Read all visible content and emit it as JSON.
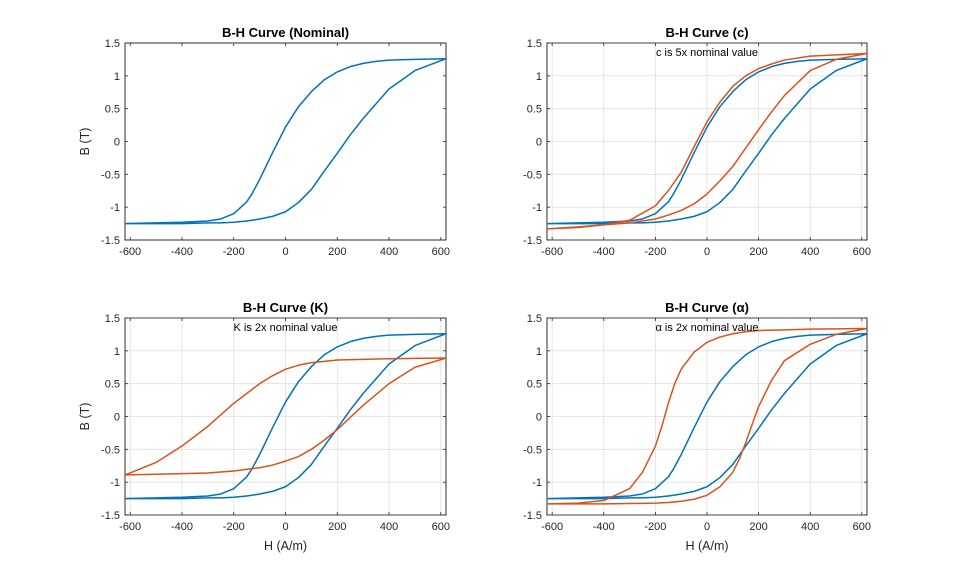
{
  "colors": {
    "nominal": "#0072BD",
    "variant": "#D95319"
  },
  "chart_data": [
    {
      "type": "line",
      "title": "B-H Curve (Nominal)",
      "annotation": "",
      "xlabel": "",
      "ylabel": "B (T)",
      "xlim": [
        -620,
        620
      ],
      "ylim": [
        -1.5,
        1.5
      ],
      "xticks": [
        -600,
        -400,
        -200,
        0,
        200,
        400,
        600
      ],
      "yticks": [
        -1.5,
        -1,
        -0.5,
        0,
        0.5,
        1,
        1.5
      ],
      "xtick_labels": [
        "-600",
        "-400",
        "-200",
        "0",
        "200",
        "400",
        "600"
      ],
      "ytick_labels": [
        "-1.5",
        "-1",
        "-0.5",
        "0",
        "0.5",
        "1",
        "1.5"
      ],
      "grid": false,
      "series": [
        {
          "color": "#0072BD",
          "x": [
            -620,
            -500,
            -400,
            -300,
            -250,
            -200,
            -150,
            -130,
            -100,
            -50,
            0,
            50,
            100,
            150,
            200,
            250,
            300,
            350,
            400,
            500,
            620,
            500,
            400,
            300,
            250,
            200,
            150,
            100,
            50,
            0,
            -50,
            -100,
            -130,
            -150,
            -200,
            -250,
            -300,
            -350,
            -400,
            -500,
            -620
          ],
          "y": [
            -1.25,
            -1.24,
            -1.23,
            -1.21,
            -1.18,
            -1.1,
            -0.92,
            -0.8,
            -0.58,
            -0.17,
            0.22,
            0.53,
            0.76,
            0.94,
            1.06,
            1.14,
            1.19,
            1.22,
            1.24,
            1.25,
            1.26,
            1.08,
            0.8,
            0.35,
            0.1,
            -0.18,
            -0.45,
            -0.73,
            -0.93,
            -1.07,
            -1.14,
            -1.18,
            -1.2,
            -1.21,
            -1.23,
            -1.24,
            -1.24,
            -1.245,
            -1.25,
            -1.25,
            -1.25
          ]
        }
      ]
    },
    {
      "type": "line",
      "title": "B-H Curve (c)",
      "annotation": "c is 5x nominal value",
      "xlabel": "",
      "ylabel": "",
      "xlim": [
        -620,
        620
      ],
      "ylim": [
        -1.5,
        1.5
      ],
      "xticks": [
        -600,
        -400,
        -200,
        0,
        200,
        400,
        600
      ],
      "yticks": [
        -1.5,
        -1,
        -0.5,
        0,
        0.5,
        1,
        1.5
      ],
      "xtick_labels": [
        "-600",
        "-400",
        "-200",
        "0",
        "200",
        "400",
        "600"
      ],
      "ytick_labels": [
        "-1.5",
        "-1",
        "-0.5",
        "0",
        "0.5",
        "1",
        "1.5"
      ],
      "grid": true,
      "series": [
        {
          "color": "#0072BD",
          "x": [
            -620,
            -500,
            -400,
            -300,
            -250,
            -200,
            -150,
            -130,
            -100,
            -50,
            0,
            50,
            100,
            150,
            200,
            250,
            300,
            350,
            400,
            500,
            620,
            500,
            400,
            300,
            250,
            200,
            150,
            100,
            50,
            0,
            -50,
            -100,
            -130,
            -150,
            -200,
            -250,
            -300,
            -350,
            -400,
            -500,
            -620
          ],
          "y": [
            -1.25,
            -1.24,
            -1.23,
            -1.21,
            -1.18,
            -1.1,
            -0.92,
            -0.8,
            -0.58,
            -0.17,
            0.22,
            0.53,
            0.76,
            0.94,
            1.06,
            1.14,
            1.19,
            1.22,
            1.24,
            1.25,
            1.26,
            1.08,
            0.8,
            0.35,
            0.1,
            -0.18,
            -0.45,
            -0.73,
            -0.93,
            -1.07,
            -1.14,
            -1.18,
            -1.2,
            -1.21,
            -1.23,
            -1.24,
            -1.24,
            -1.245,
            -1.25,
            -1.25,
            -1.25
          ]
        },
        {
          "color": "#D95319",
          "x": [
            -620,
            -500,
            -400,
            -300,
            -200,
            -150,
            -100,
            -50,
            0,
            50,
            100,
            150,
            200,
            250,
            300,
            400,
            500,
            620,
            500,
            400,
            300,
            250,
            200,
            150,
            100,
            50,
            0,
            -50,
            -100,
            -150,
            -200,
            -300,
            -400,
            -500,
            -620
          ],
          "y": [
            -1.33,
            -1.31,
            -1.27,
            -1.2,
            -0.98,
            -0.75,
            -0.47,
            -0.08,
            0.3,
            0.6,
            0.84,
            1.0,
            1.11,
            1.18,
            1.24,
            1.3,
            1.32,
            1.34,
            1.25,
            1.08,
            0.7,
            0.45,
            0.18,
            -0.1,
            -0.38,
            -0.6,
            -0.8,
            -0.95,
            -1.05,
            -1.12,
            -1.18,
            -1.24,
            -1.27,
            -1.3,
            -1.33
          ]
        }
      ]
    },
    {
      "type": "line",
      "title": "B-H Curve (K)",
      "annotation": "K is 2x nominal value",
      "xlabel": "H (A/m)",
      "ylabel": "B (T)",
      "xlim": [
        -620,
        620
      ],
      "ylim": [
        -1.5,
        1.5
      ],
      "xticks": [
        -600,
        -400,
        -200,
        0,
        200,
        400,
        600
      ],
      "yticks": [
        -1.5,
        -1,
        -0.5,
        0,
        0.5,
        1,
        1.5
      ],
      "xtick_labels": [
        "-600",
        "-400",
        "-200",
        "0",
        "200",
        "400",
        "600"
      ],
      "ytick_labels": [
        "-1.5",
        "-1",
        "-0.5",
        "0",
        "0.5",
        "1",
        "1.5"
      ],
      "grid": true,
      "series": [
        {
          "color": "#0072BD",
          "x": [
            -620,
            -500,
            -400,
            -300,
            -250,
            -200,
            -150,
            -130,
            -100,
            -50,
            0,
            50,
            100,
            150,
            200,
            250,
            300,
            350,
            400,
            500,
            620,
            500,
            400,
            300,
            250,
            200,
            150,
            100,
            50,
            0,
            -50,
            -100,
            -130,
            -150,
            -200,
            -250,
            -300,
            -350,
            -400,
            -500,
            -620
          ],
          "y": [
            -1.25,
            -1.24,
            -1.23,
            -1.21,
            -1.18,
            -1.1,
            -0.92,
            -0.8,
            -0.58,
            -0.17,
            0.22,
            0.53,
            0.76,
            0.94,
            1.06,
            1.14,
            1.19,
            1.22,
            1.24,
            1.25,
            1.26,
            1.08,
            0.8,
            0.35,
            0.1,
            -0.18,
            -0.45,
            -0.73,
            -0.93,
            -1.07,
            -1.14,
            -1.18,
            -1.2,
            -1.21,
            -1.23,
            -1.24,
            -1.24,
            -1.245,
            -1.25,
            -1.25,
            -1.25
          ]
        },
        {
          "color": "#D95319",
          "x": [
            -620,
            -500,
            -400,
            -300,
            -200,
            -100,
            -50,
            0,
            50,
            100,
            150,
            200,
            300,
            400,
            500,
            620,
            500,
            400,
            300,
            200,
            150,
            100,
            50,
            0,
            -50,
            -100,
            -200,
            -300,
            -400,
            -500,
            -620
          ],
          "y": [
            -0.89,
            -0.7,
            -0.45,
            -0.15,
            0.2,
            0.5,
            0.62,
            0.72,
            0.78,
            0.82,
            0.84,
            0.86,
            0.87,
            0.88,
            0.885,
            0.89,
            0.75,
            0.5,
            0.17,
            -0.2,
            -0.36,
            -0.5,
            -0.61,
            -0.68,
            -0.74,
            -0.78,
            -0.83,
            -0.86,
            -0.87,
            -0.88,
            -0.89
          ]
        }
      ]
    },
    {
      "type": "line",
      "title": "B-H  Curve  (α)",
      "annotation": "α  is  2x  nominal  value",
      "xlabel": "H (A/m)",
      "ylabel": "",
      "xlim": [
        -620,
        620
      ],
      "ylim": [
        -1.5,
        1.5
      ],
      "xticks": [
        -600,
        -400,
        -200,
        0,
        200,
        400,
        600
      ],
      "yticks": [
        -1.5,
        -1,
        -0.5,
        0,
        0.5,
        1,
        1.5
      ],
      "xtick_labels": [
        "-600",
        "-400",
        "-200",
        "0",
        "200",
        "400",
        "600"
      ],
      "ytick_labels": [
        "-1.5",
        "-1",
        "-0.5",
        "0",
        "0.5",
        "1",
        "1.5"
      ],
      "grid": true,
      "series": [
        {
          "color": "#0072BD",
          "x": [
            -620,
            -500,
            -400,
            -300,
            -250,
            -200,
            -150,
            -130,
            -100,
            -50,
            0,
            50,
            100,
            150,
            200,
            250,
            300,
            350,
            400,
            500,
            620,
            500,
            400,
            300,
            250,
            200,
            150,
            100,
            50,
            0,
            -50,
            -100,
            -130,
            -150,
            -200,
            -250,
            -300,
            -350,
            -400,
            -500,
            -620
          ],
          "y": [
            -1.25,
            -1.24,
            -1.23,
            -1.21,
            -1.18,
            -1.1,
            -0.92,
            -0.8,
            -0.58,
            -0.17,
            0.22,
            0.53,
            0.76,
            0.94,
            1.06,
            1.14,
            1.19,
            1.22,
            1.24,
            1.25,
            1.26,
            1.08,
            0.8,
            0.35,
            0.1,
            -0.18,
            -0.45,
            -0.73,
            -0.93,
            -1.07,
            -1.14,
            -1.18,
            -1.2,
            -1.21,
            -1.23,
            -1.24,
            -1.24,
            -1.245,
            -1.25,
            -1.25,
            -1.25
          ]
        },
        {
          "color": "#D95319",
          "x": [
            -620,
            -500,
            -400,
            -300,
            -250,
            -200,
            -175,
            -150,
            -125,
            -100,
            -50,
            0,
            50,
            100,
            150,
            200,
            300,
            400,
            500,
            620,
            500,
            400,
            300,
            250,
            200,
            175,
            150,
            125,
            100,
            50,
            0,
            -50,
            -100,
            -150,
            -200,
            -300,
            -400,
            -500,
            -620
          ],
          "y": [
            -1.33,
            -1.32,
            -1.28,
            -1.1,
            -0.85,
            -0.45,
            -0.15,
            0.2,
            0.5,
            0.72,
            0.98,
            1.13,
            1.21,
            1.26,
            1.29,
            1.31,
            1.32,
            1.33,
            1.335,
            1.34,
            1.25,
            1.1,
            0.85,
            0.55,
            0.15,
            -0.12,
            -0.4,
            -0.65,
            -0.85,
            -1.07,
            -1.2,
            -1.26,
            -1.29,
            -1.31,
            -1.32,
            -1.325,
            -1.33,
            -1.33,
            -1.33
          ]
        }
      ]
    }
  ]
}
